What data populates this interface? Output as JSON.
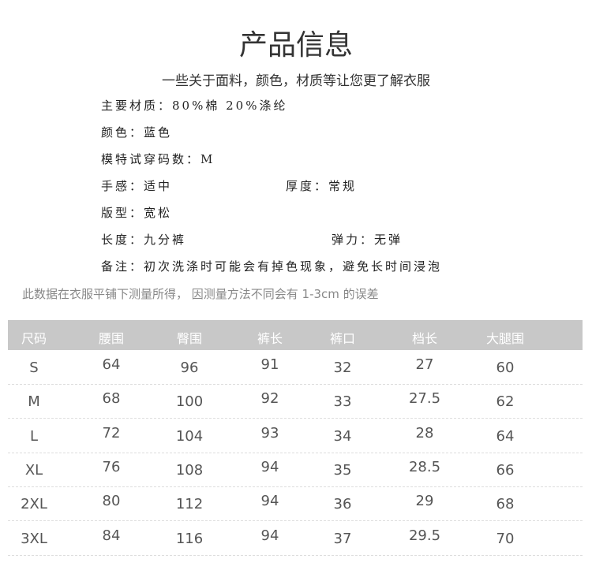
{
  "title": "产品信息",
  "subtitle": "一些关于面料，颜色，材质等让您更了解衣服",
  "info": {
    "material": "主要材质：80%棉 20%涤纶",
    "color": "颜色：蓝色",
    "model_size": "模特试穿码数：M",
    "feel": "手感：适中",
    "thickness": "厚度：常规",
    "fit": "版型：宽松",
    "length": "长度：九分裤",
    "elasticity": "弹力：无弹",
    "remark": "备注：初次洗涤时可能会有掉色现象，避免长时间浸泡"
  },
  "note": "此数据在衣服平铺下测量所得， 因测量方法不同会有 1-3cm 的误差",
  "table": {
    "headers": [
      "尺码",
      "腰围",
      "臀围",
      "裤长",
      "裤口",
      "档长",
      "大腿围"
    ],
    "rows": [
      [
        "S",
        "64",
        "96",
        "91",
        "32",
        "27",
        "60"
      ],
      [
        "M",
        "68",
        "100",
        "92",
        "33",
        "27.5",
        "62"
      ],
      [
        "L",
        "72",
        "104",
        "93",
        "34",
        "28",
        "64"
      ],
      [
        "XL",
        "76",
        "108",
        "94",
        "35",
        "28.5",
        "66"
      ],
      [
        "2XL",
        "80",
        "112",
        "94",
        "36",
        "29",
        "68"
      ],
      [
        "3XL",
        "84",
        "116",
        "94",
        "37",
        "29.5",
        "70"
      ]
    ]
  }
}
